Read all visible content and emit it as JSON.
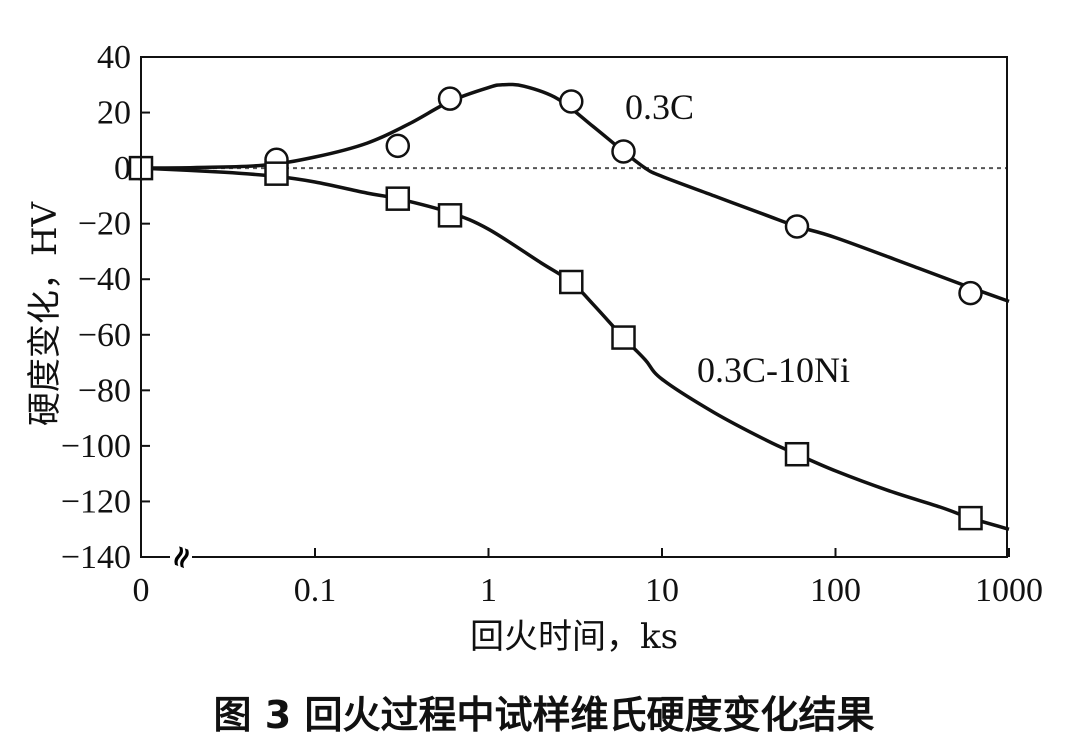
{
  "chart_data": {
    "type": "line",
    "caption": "图 3 回火过程中试样维氏硬度变化结果",
    "xlabel": "回火时间，ks",
    "ylabel": "硬度变化，HV",
    "x_scale": "log",
    "x_ticks": [
      "0",
      "0.1",
      "1",
      "10",
      "100",
      "1000"
    ],
    "y_ticks": [
      "40",
      "20",
      "0",
      "-20",
      "-40",
      "-60",
      "-80",
      "-100",
      "-120",
      "-140"
    ],
    "ylim": [
      -140,
      40
    ],
    "axis_break_symbol": "≈",
    "reference_line_y": 0,
    "series": [
      {
        "name": "0.3C",
        "marker": "circle",
        "x": [
          0,
          0.06,
          0.3,
          0.6,
          3,
          6,
          60,
          600
        ],
        "y": [
          0,
          3,
          8,
          25,
          24,
          6,
          -21,
          -45
        ],
        "curve_x": [
          0,
          0.02,
          0.05,
          0.1,
          0.2,
          0.35,
          0.6,
          1,
          1.2,
          1.6,
          2.5,
          4,
          6,
          8,
          10,
          20,
          40,
          60,
          100,
          300,
          600,
          1000
        ],
        "curve_y": [
          0,
          0.2,
          1,
          4,
          9,
          16,
          24,
          29,
          30,
          29.5,
          25,
          15,
          6,
          0,
          -3,
          -10,
          -17,
          -21,
          -25,
          -36,
          -43,
          -48
        ]
      },
      {
        "name": "0.3C-10Ni",
        "marker": "square",
        "x": [
          0,
          0.06,
          0.3,
          0.6,
          3,
          6,
          60,
          600
        ],
        "y": [
          0,
          -2,
          -11,
          -17,
          -41,
          -61,
          -103,
          -126
        ],
        "curve_x": [
          0,
          0.03,
          0.06,
          0.1,
          0.2,
          0.3,
          0.6,
          1,
          2,
          3,
          4,
          6,
          8,
          10,
          20,
          40,
          60,
          100,
          200,
          400,
          600,
          1000
        ],
        "curve_y": [
          0,
          -1.5,
          -3,
          -5,
          -9,
          -11,
          -16,
          -22,
          -34,
          -41,
          -49,
          -61,
          -69,
          -76,
          -88,
          -98,
          -103,
          -109,
          -116,
          -122,
          -126,
          -130
        ]
      }
    ]
  }
}
